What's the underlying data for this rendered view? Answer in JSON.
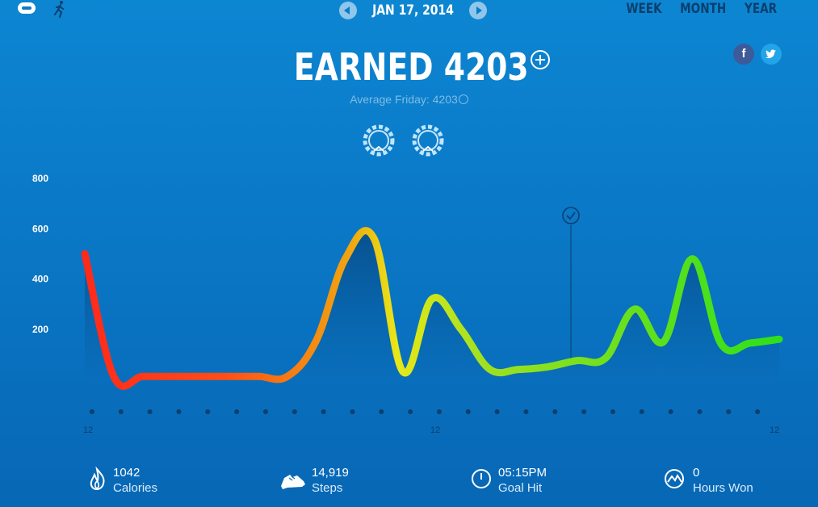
{
  "nav": {
    "date": "JAN 17, 2014",
    "periods": [
      "WEEK",
      "MONTH",
      "YEAR"
    ]
  },
  "social": {
    "facebook": "f",
    "twitter": "t"
  },
  "summary": {
    "headline": "EARNED 4203",
    "average_label": "Average Friday: 4203"
  },
  "chart_data": {
    "type": "area",
    "ylim": [
      0,
      800
    ],
    "y_ticks": [
      "800",
      "600",
      "400",
      "200"
    ],
    "x_ticks": [
      "12",
      "12",
      "12"
    ],
    "goal_marker_hour": 16.8,
    "hours": [
      0,
      1,
      2,
      3,
      4,
      5,
      6,
      7,
      8,
      9,
      10,
      11,
      12,
      13,
      14,
      15,
      16,
      17,
      18,
      19,
      20,
      21,
      22,
      23,
      24
    ],
    "values": [
      500,
      12,
      12,
      12,
      12,
      12,
      12,
      12,
      155,
      480,
      560,
      30,
      320,
      200,
      40,
      40,
      50,
      75,
      85,
      280,
      150,
      480,
      140,
      145,
      160
    ]
  },
  "stats": [
    {
      "icon": "flame-icon",
      "value": "1042",
      "label": "Calories"
    },
    {
      "icon": "shoe-icon",
      "value": "14,919",
      "label": "Steps"
    },
    {
      "icon": "clock-icon",
      "value": "05:15PM",
      "label": "Goal Hit"
    },
    {
      "icon": "hours-won-icon",
      "value": "0",
      "label": "Hours Won"
    }
  ],
  "colors": {
    "low": "#ff2a1a",
    "mid": "#f2d400",
    "high": "#2ee01a"
  }
}
